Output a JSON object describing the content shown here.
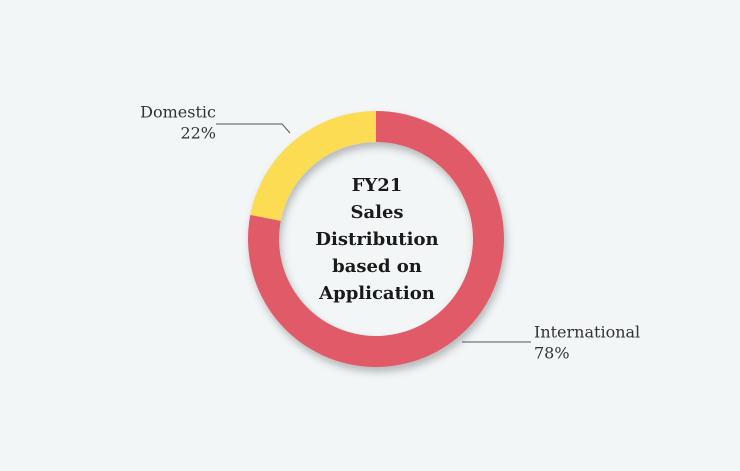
{
  "chart_data": {
    "type": "donut",
    "title": [
      "FY21",
      "Sales",
      "Distribution",
      "based on",
      "Application"
    ],
    "categories": [
      "Domestic",
      "International"
    ],
    "values": [
      22,
      78
    ],
    "value_labels": [
      "22%",
      "78%"
    ],
    "colors": [
      "#fbdc52",
      "#e05a68"
    ]
  }
}
